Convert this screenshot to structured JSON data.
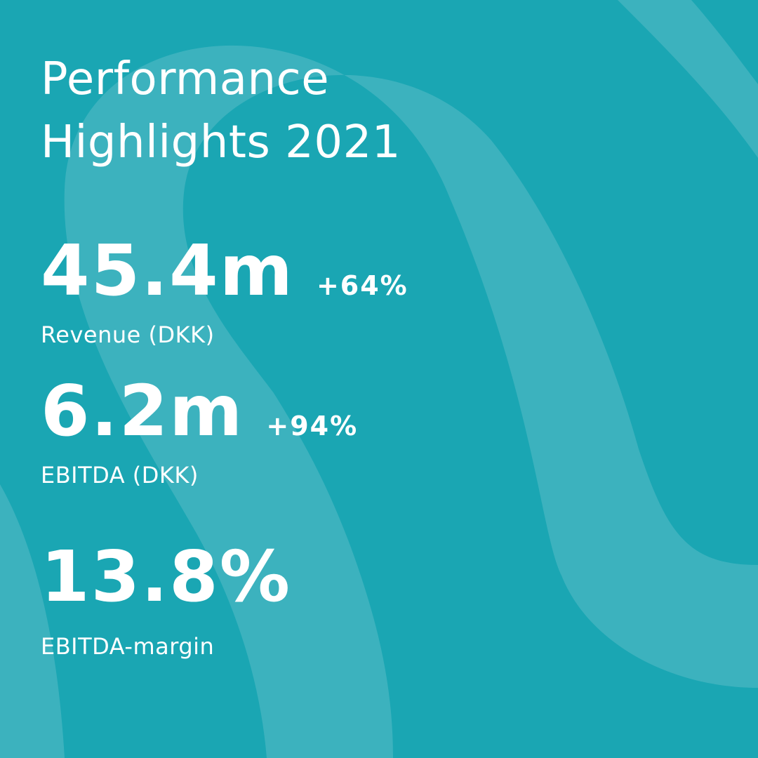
{
  "colors": {
    "background": "#1aa6b3",
    "wave": "#3cb2be",
    "text": "#ffffff"
  },
  "title": {
    "line1": "Performance",
    "line2": "Highlights 2021"
  },
  "metrics": [
    {
      "value": "45.4m",
      "change": "+64%",
      "label": "Revenue (DKK)"
    },
    {
      "value": "6.2m",
      "change": "+94%",
      "label": "EBITDA (DKK)"
    },
    {
      "value": "13.8%",
      "change": "",
      "label": "EBITDA-margin"
    }
  ]
}
